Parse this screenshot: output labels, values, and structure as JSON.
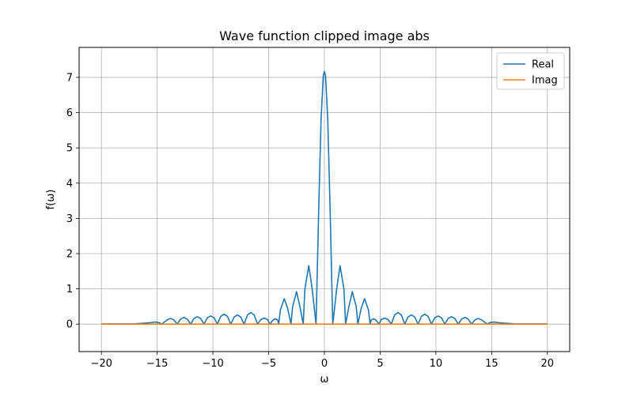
{
  "chart_data": {
    "type": "line",
    "title": "Wave function clipped image abs",
    "xlabel": "ω",
    "ylabel": "f(ω)",
    "xlim": [
      -22,
      22
    ],
    "ylim": [
      -0.78,
      7.85
    ],
    "xticks": [
      -20,
      -15,
      -10,
      -5,
      0,
      5,
      10,
      15,
      20
    ],
    "yticks": [
      0,
      1,
      2,
      3,
      4,
      5,
      6,
      7
    ],
    "grid": true,
    "legend_position": "top-right",
    "series": [
      {
        "name": "Real",
        "color": "#1f77b4",
        "points": [
          [
            -20,
            0.005
          ],
          [
            -17,
            0.01
          ],
          [
            -15.6,
            0.04
          ],
          [
            -15.2,
            0.06
          ],
          [
            -14.8,
            0.04
          ],
          [
            -14.6,
            0.0
          ],
          [
            -14.1,
            0.12
          ],
          [
            -13.8,
            0.16
          ],
          [
            -13.5,
            0.12
          ],
          [
            -13.2,
            0.0
          ],
          [
            -12.9,
            0.14
          ],
          [
            -12.6,
            0.19
          ],
          [
            -12.3,
            0.14
          ],
          [
            -12.0,
            0.0
          ],
          [
            -11.7,
            0.16
          ],
          [
            -11.4,
            0.21
          ],
          [
            -11.1,
            0.16
          ],
          [
            -10.8,
            0.0
          ],
          [
            -10.5,
            0.18
          ],
          [
            -10.2,
            0.23
          ],
          [
            -9.9,
            0.18
          ],
          [
            -9.6,
            0.0
          ],
          [
            -9.3,
            0.22
          ],
          [
            -9.0,
            0.28
          ],
          [
            -8.7,
            0.22
          ],
          [
            -8.4,
            0.0
          ],
          [
            -8.1,
            0.2
          ],
          [
            -7.8,
            0.26
          ],
          [
            -7.5,
            0.2
          ],
          [
            -7.2,
            0.0
          ],
          [
            -6.9,
            0.26
          ],
          [
            -6.6,
            0.33
          ],
          [
            -6.3,
            0.26
          ],
          [
            -6.0,
            0.0
          ],
          [
            -5.7,
            0.13
          ],
          [
            -5.4,
            0.17
          ],
          [
            -5.1,
            0.13
          ],
          [
            -4.9,
            0.0
          ],
          [
            -4.6,
            0.12
          ],
          [
            -4.4,
            0.15
          ],
          [
            -4.2,
            0.12
          ],
          [
            -4.1,
            0.0
          ],
          [
            -3.95,
            0.4
          ],
          [
            -3.6,
            0.72
          ],
          [
            -3.3,
            0.45
          ],
          [
            -3.0,
            0.0
          ],
          [
            -2.85,
            0.5
          ],
          [
            -2.5,
            0.92
          ],
          [
            -2.2,
            0.5
          ],
          [
            -1.9,
            0.0
          ],
          [
            -1.75,
            1.0
          ],
          [
            -1.4,
            1.66
          ],
          [
            -1.1,
            1.0
          ],
          [
            -0.75,
            0.0
          ],
          [
            -0.5,
            3.4
          ],
          [
            -0.3,
            5.8
          ],
          [
            -0.1,
            7.05
          ],
          [
            0,
            7.17
          ],
          [
            0.1,
            7.05
          ],
          [
            0.3,
            5.8
          ],
          [
            0.5,
            3.4
          ],
          [
            0.75,
            0.0
          ],
          [
            1.1,
            1.0
          ],
          [
            1.4,
            1.66
          ],
          [
            1.75,
            1.0
          ],
          [
            1.9,
            0.0
          ],
          [
            2.2,
            0.5
          ],
          [
            2.5,
            0.92
          ],
          [
            2.85,
            0.5
          ],
          [
            3.0,
            0.0
          ],
          [
            3.3,
            0.45
          ],
          [
            3.6,
            0.72
          ],
          [
            3.95,
            0.4
          ],
          [
            4.1,
            0.0
          ],
          [
            4.2,
            0.12
          ],
          [
            4.4,
            0.15
          ],
          [
            4.6,
            0.12
          ],
          [
            4.9,
            0.0
          ],
          [
            5.1,
            0.13
          ],
          [
            5.4,
            0.17
          ],
          [
            5.7,
            0.13
          ],
          [
            6.0,
            0.0
          ],
          [
            6.3,
            0.26
          ],
          [
            6.6,
            0.33
          ],
          [
            6.9,
            0.26
          ],
          [
            7.2,
            0.0
          ],
          [
            7.5,
            0.2
          ],
          [
            7.8,
            0.26
          ],
          [
            8.1,
            0.2
          ],
          [
            8.4,
            0.0
          ],
          [
            8.7,
            0.22
          ],
          [
            9.0,
            0.28
          ],
          [
            9.3,
            0.22
          ],
          [
            9.6,
            0.0
          ],
          [
            9.9,
            0.18
          ],
          [
            10.2,
            0.23
          ],
          [
            10.5,
            0.18
          ],
          [
            10.8,
            0.0
          ],
          [
            11.1,
            0.16
          ],
          [
            11.4,
            0.21
          ],
          [
            11.7,
            0.16
          ],
          [
            12.0,
            0.0
          ],
          [
            12.3,
            0.14
          ],
          [
            12.6,
            0.19
          ],
          [
            12.9,
            0.14
          ],
          [
            13.2,
            0.0
          ],
          [
            13.5,
            0.12
          ],
          [
            13.8,
            0.16
          ],
          [
            14.1,
            0.12
          ],
          [
            14.6,
            0.0
          ],
          [
            14.8,
            0.04
          ],
          [
            15.2,
            0.06
          ],
          [
            15.6,
            0.04
          ],
          [
            17,
            0.01
          ],
          [
            20,
            0.005
          ]
        ]
      },
      {
        "name": "Imag",
        "color": "#ff7f0e",
        "points": [
          [
            -20,
            0
          ],
          [
            20,
            0
          ]
        ]
      }
    ]
  }
}
